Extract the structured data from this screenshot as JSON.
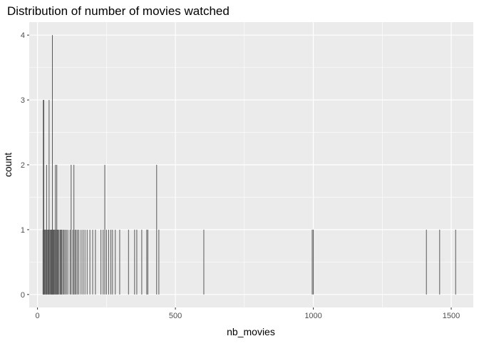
{
  "chart_data": {
    "type": "bar",
    "title": "Distribution of number of movies watched",
    "xlabel": "nb_movies",
    "ylabel": "count",
    "xlim": [
      -30,
      1580
    ],
    "ylim": [
      -0.2,
      4.2
    ],
    "x_ticks": [
      0,
      500,
      1000,
      1500
    ],
    "y_ticks": [
      0,
      1,
      2,
      3,
      4
    ],
    "grid": true,
    "colors": {
      "panel": "#ebebeb",
      "grid": "#ffffff",
      "bar": "#595959"
    },
    "bars": [
      {
        "x": 20,
        "count": 1
      },
      {
        "x": 21,
        "count": 3
      },
      {
        "x": 23,
        "count": 3
      },
      {
        "x": 24,
        "count": 1
      },
      {
        "x": 26,
        "count": 1
      },
      {
        "x": 29,
        "count": 1
      },
      {
        "x": 31,
        "count": 1
      },
      {
        "x": 33,
        "count": 2
      },
      {
        "x": 35,
        "count": 1
      },
      {
        "x": 38,
        "count": 1
      },
      {
        "x": 40,
        "count": 1
      },
      {
        "x": 42,
        "count": 3
      },
      {
        "x": 45,
        "count": 1
      },
      {
        "x": 48,
        "count": 1
      },
      {
        "x": 50,
        "count": 1
      },
      {
        "x": 52,
        "count": 1
      },
      {
        "x": 54,
        "count": 4
      },
      {
        "x": 56,
        "count": 1
      },
      {
        "x": 58,
        "count": 1
      },
      {
        "x": 60,
        "count": 1
      },
      {
        "x": 63,
        "count": 1
      },
      {
        "x": 65,
        "count": 2
      },
      {
        "x": 68,
        "count": 1
      },
      {
        "x": 70,
        "count": 2
      },
      {
        "x": 72,
        "count": 1
      },
      {
        "x": 75,
        "count": 1
      },
      {
        "x": 78,
        "count": 1
      },
      {
        "x": 82,
        "count": 1
      },
      {
        "x": 85,
        "count": 1
      },
      {
        "x": 88,
        "count": 1
      },
      {
        "x": 92,
        "count": 1
      },
      {
        "x": 96,
        "count": 1
      },
      {
        "x": 100,
        "count": 1
      },
      {
        "x": 105,
        "count": 1
      },
      {
        "x": 110,
        "count": 1
      },
      {
        "x": 118,
        "count": 1
      },
      {
        "x": 122,
        "count": 2
      },
      {
        "x": 128,
        "count": 1
      },
      {
        "x": 132,
        "count": 2
      },
      {
        "x": 136,
        "count": 1
      },
      {
        "x": 140,
        "count": 1
      },
      {
        "x": 145,
        "count": 1
      },
      {
        "x": 150,
        "count": 1
      },
      {
        "x": 158,
        "count": 1
      },
      {
        "x": 165,
        "count": 1
      },
      {
        "x": 172,
        "count": 1
      },
      {
        "x": 180,
        "count": 1
      },
      {
        "x": 190,
        "count": 1
      },
      {
        "x": 200,
        "count": 1
      },
      {
        "x": 210,
        "count": 1
      },
      {
        "x": 230,
        "count": 1
      },
      {
        "x": 238,
        "count": 1
      },
      {
        "x": 244,
        "count": 2
      },
      {
        "x": 250,
        "count": 1
      },
      {
        "x": 258,
        "count": 1
      },
      {
        "x": 266,
        "count": 1
      },
      {
        "x": 272,
        "count": 1
      },
      {
        "x": 282,
        "count": 1
      },
      {
        "x": 298,
        "count": 1
      },
      {
        "x": 330,
        "count": 1
      },
      {
        "x": 352,
        "count": 1
      },
      {
        "x": 360,
        "count": 1
      },
      {
        "x": 378,
        "count": 1
      },
      {
        "x": 396,
        "count": 1
      },
      {
        "x": 400,
        "count": 1
      },
      {
        "x": 432,
        "count": 2
      },
      {
        "x": 440,
        "count": 1
      },
      {
        "x": 603,
        "count": 1
      },
      {
        "x": 996,
        "count": 1
      },
      {
        "x": 1000,
        "count": 1
      },
      {
        "x": 1410,
        "count": 1
      },
      {
        "x": 1458,
        "count": 1
      },
      {
        "x": 1516,
        "count": 1
      }
    ]
  }
}
